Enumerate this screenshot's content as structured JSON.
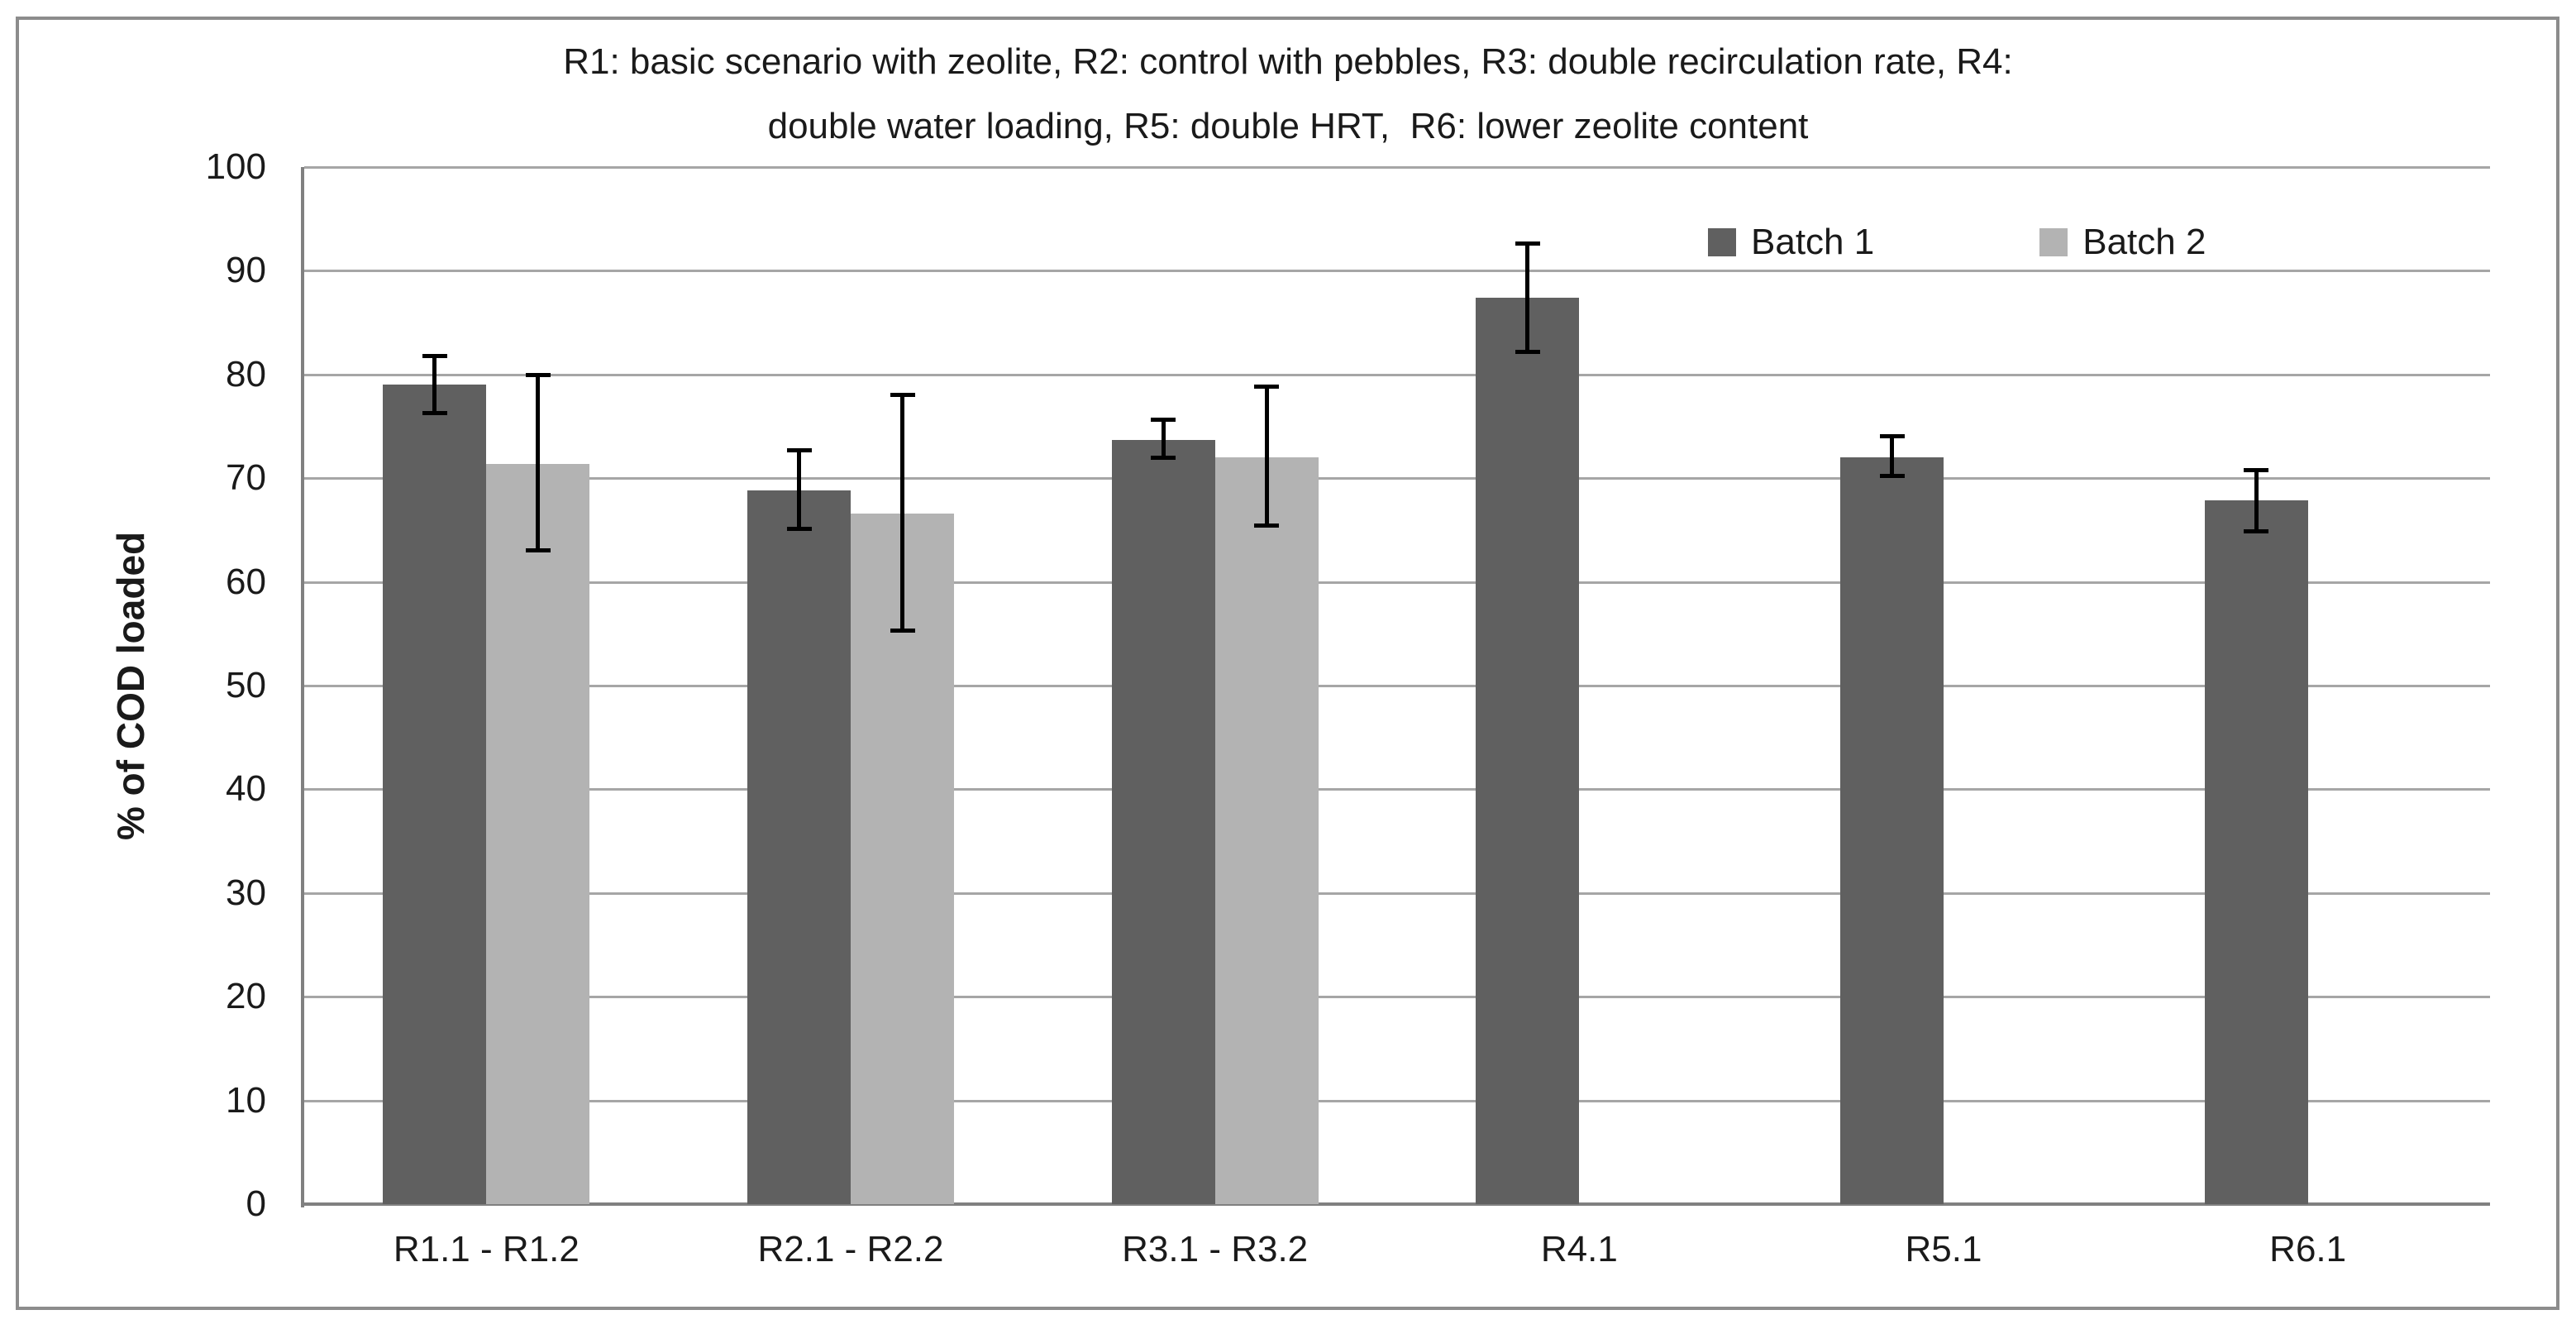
{
  "figure": {
    "background": "#ffffff",
    "border_color": "#8c8c8c"
  },
  "chart_data": {
    "type": "bar",
    "title": "R1: basic scenario with zeolite, R2: control with pebbles, R3: double recirculation rate, R4:\ndouble water loading, R5: double HRT,  R6: lower zeolite content",
    "ylabel": "% of COD loaded",
    "xlabel": "",
    "ylim": [
      0,
      100
    ],
    "yticks": [
      0,
      10,
      20,
      30,
      40,
      50,
      60,
      70,
      80,
      90,
      100
    ],
    "grid": true,
    "gridline_color": "#a6a6a6",
    "axis_color": "#808080",
    "error_bar_color": "#000000",
    "text_color": "#1a1a1a",
    "legend_position": "top-right-inside",
    "legend": [
      "Batch 1",
      "Batch 2"
    ],
    "categories": [
      "R1.1 - R1.2",
      "R2.1 - R2.2",
      "R3.1 - R3.2",
      "R4.1",
      "R5.1",
      "R6.1"
    ],
    "series": [
      {
        "name": "Batch 1",
        "color": "#606060",
        "values": [
          79,
          68.8,
          73.7,
          87.4,
          72,
          67.9
        ],
        "error_low": [
          76.2,
          65.1,
          71.9,
          82.1,
          70.2,
          64.8
        ],
        "error_high": [
          81.8,
          72.7,
          75.7,
          92.7,
          74.1,
          70.8
        ]
      },
      {
        "name": "Batch 2",
        "color": "#b3b3b3",
        "values": [
          71.4,
          66.6,
          72,
          null,
          null,
          null
        ],
        "error_low": [
          63,
          55.3,
          65.4,
          null,
          null,
          null
        ],
        "error_high": [
          80,
          78.1,
          78.9,
          null,
          null,
          null
        ]
      }
    ]
  }
}
